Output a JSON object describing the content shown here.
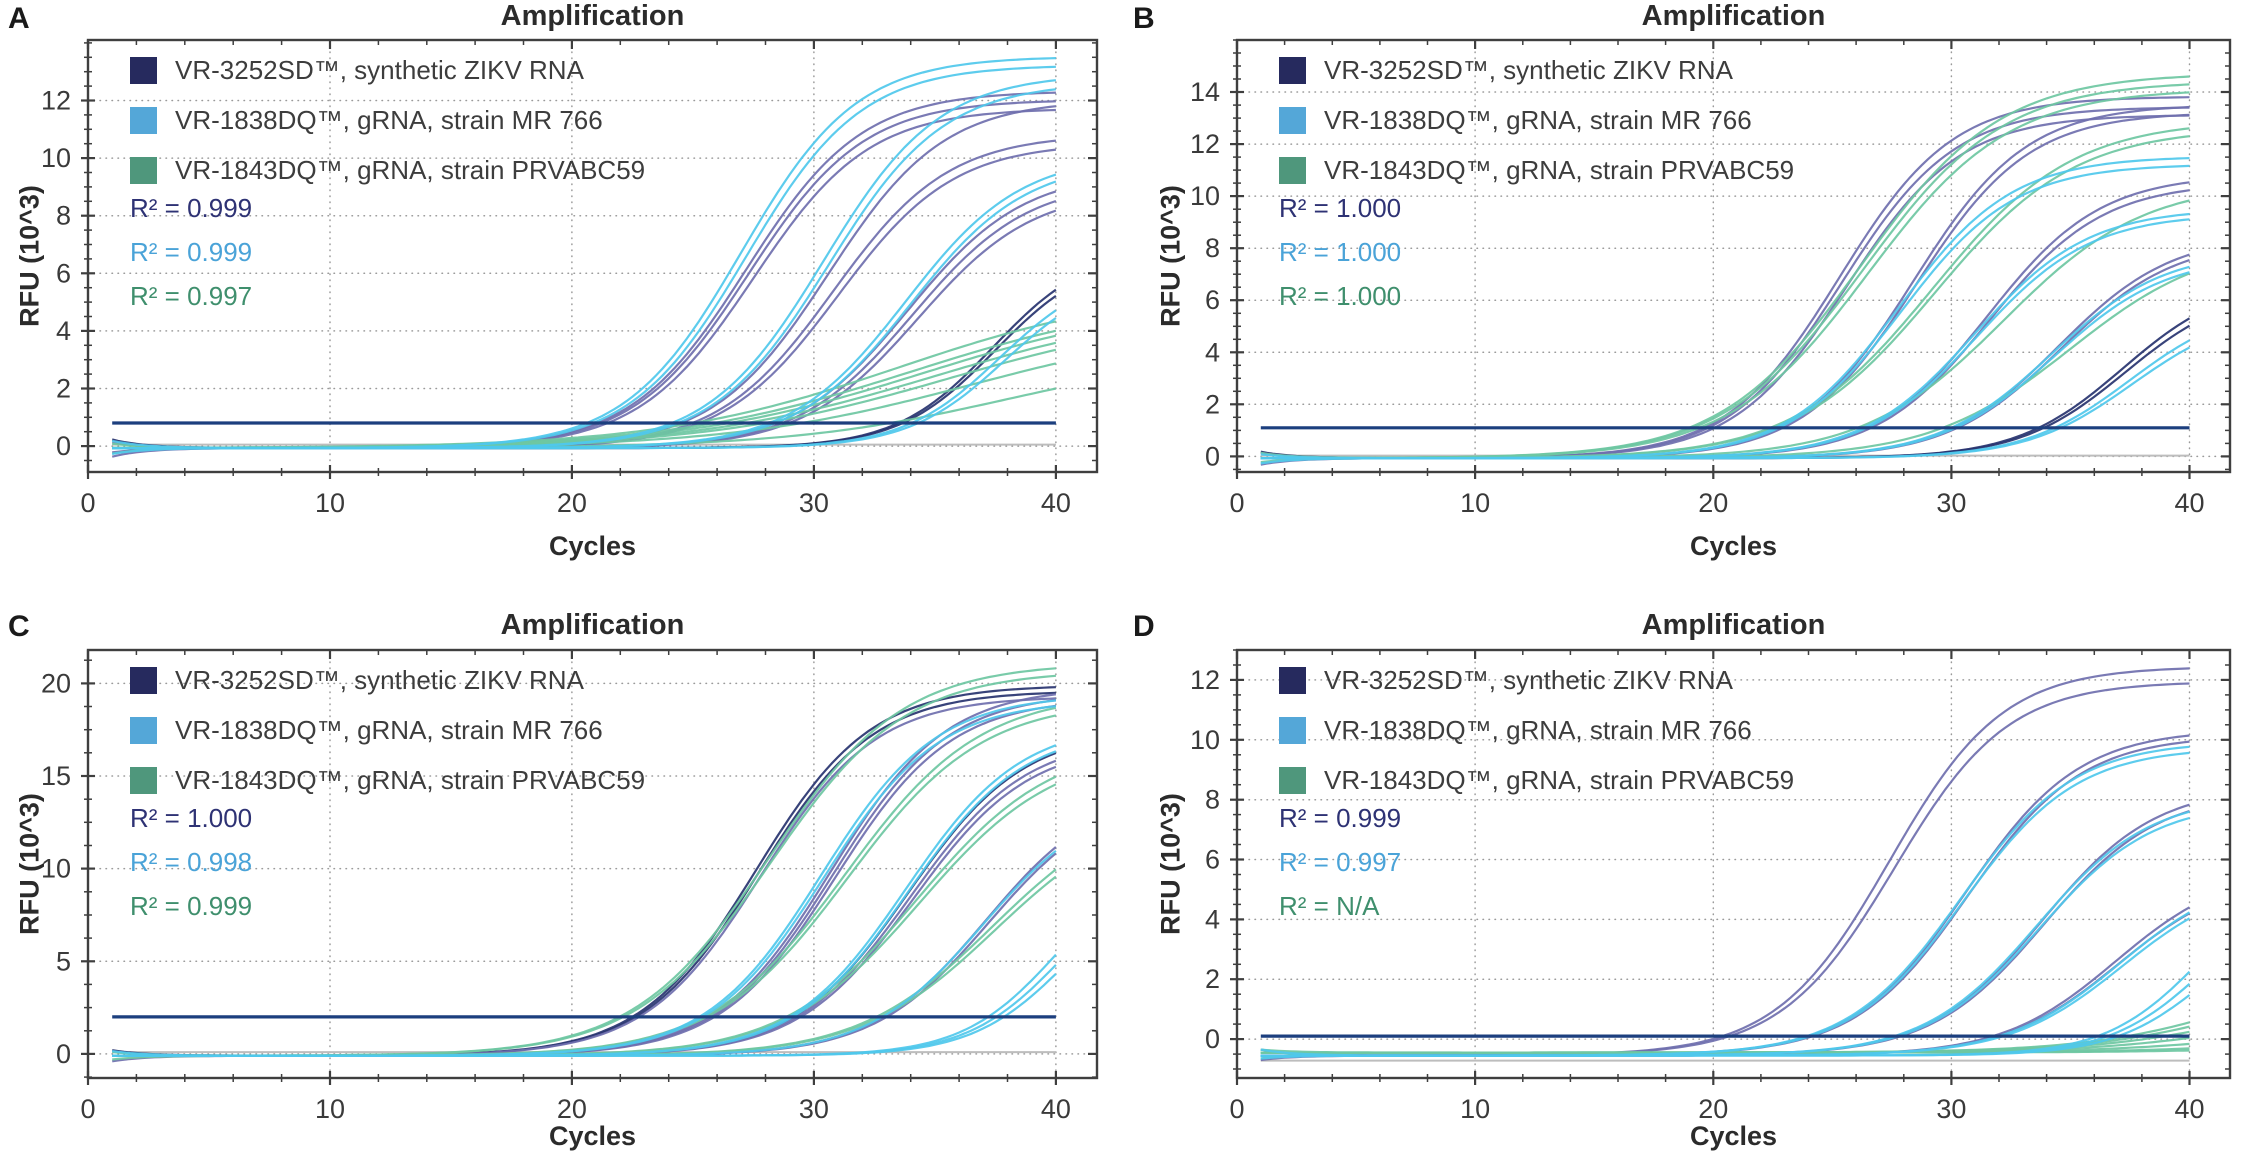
{
  "colors": {
    "swatch_navy": "#262a5e",
    "swatch_blue": "#54a7d8",
    "swatch_green": "#4f977c",
    "curve_navy": "#27336f",
    "curve_purple": "#6f6fae",
    "curve_cyan": "#4fc8ec",
    "curve_green": "#6ec7a2",
    "threshold": "#1c3f7e",
    "ntc": "#bdbdbd",
    "axis": "#3f3f3f",
    "grid": "#9a9a9a",
    "tick_text": "#3a3a3a",
    "r2_navy": "#2e3274",
    "r2_blue": "#4aa3d8",
    "r2_green": "#3f8f6d"
  },
  "legend": [
    {
      "label": "VR-3252SD™, synthetic ZIKV RNA",
      "color": "swatch_navy"
    },
    {
      "label": "VR-1838DQ™, gRNA, strain MR 766",
      "color": "swatch_blue"
    },
    {
      "label": "VR-1843DQ™, gRNA, strain PRVABC59",
      "color": "swatch_green"
    }
  ],
  "chart_data": [
    {
      "id": "a",
      "panel_letter": "A",
      "type": "line",
      "title": "Amplification",
      "xlabel": "Cycles",
      "ylabel": "RFU (10^3)",
      "xlim": [
        0,
        41.7
      ],
      "ylim": [
        -0.9,
        14.1
      ],
      "x_ticks": [
        0,
        10,
        20,
        30,
        40
      ],
      "x_minor_step": 2,
      "y_ticks": [
        0,
        2,
        4,
        6,
        8,
        10,
        12
      ],
      "y_minor_step": 0.5,
      "grid": true,
      "threshold": 0.8,
      "ntc": 0.05,
      "baseline": -0.07,
      "r2": [
        {
          "text": "R² = 0.999",
          "color": "r2_navy"
        },
        {
          "text": "R² = 0.999",
          "color": "r2_blue"
        },
        {
          "text": "R² = 0.997",
          "color": "r2_green"
        }
      ],
      "series": [
        {
          "name": "VR-3252SD™, synthetic ZIKV RNA",
          "shade": "dark",
          "color": "curve_navy",
          "k": 0.5,
          "curves": [
            {
              "m": 37.4,
              "p": 7.0,
              "a": 0.3
            },
            {
              "m": 37.5,
              "p": 6.8
            }
          ]
        },
        {
          "name": "VR-3252SD™, synthetic ZIKV RNA",
          "shade": "light",
          "color": "curve_purple",
          "k": 0.42,
          "curves": [
            {
              "m": 27.2,
              "p": 12.4,
              "a": -0.3
            },
            {
              "m": 27.3,
              "p": 12.1
            },
            {
              "m": 27.5,
              "p": 11.8
            },
            {
              "m": 30.6,
              "p": 12.1,
              "a": 0.2
            },
            {
              "m": 30.8,
              "p": 10.9
            },
            {
              "m": 31.0,
              "p": 10.6
            },
            {
              "m": 33.9,
              "p": 9.6,
              "a": -0.15
            },
            {
              "m": 34.1,
              "p": 9.3
            },
            {
              "m": 34.3,
              "p": 9.0
            }
          ]
        },
        {
          "name": "VR-1843DQ™, gRNA, strain PRVABC59",
          "color": "curve_green",
          "k": 0.2,
          "curves": [
            {
              "m": 33.5,
              "p": 5.6,
              "a": -0.2
            },
            {
              "m": 34.0,
              "p": 5.3
            },
            {
              "m": 34.5,
              "p": 5.2
            },
            {
              "m": 35.0,
              "p": 5.0,
              "a": 0.15
            },
            {
              "m": 35.5,
              "p": 4.8
            },
            {
              "m": 36.5,
              "p": 4.4
            },
            {
              "m": 38.0,
              "p": 3.4,
              "k": 0.22
            }
          ]
        },
        {
          "name": "VR-1838DQ™, gRNA, strain MR 766",
          "color": "curve_cyan",
          "k": 0.42,
          "curves": [
            {
              "m": 27.0,
              "p": 13.6,
              "a": 0.25
            },
            {
              "m": 27.2,
              "p": 13.3
            },
            {
              "m": 30.4,
              "p": 13.0
            },
            {
              "m": 30.6,
              "p": 12.7,
              "a": -0.2
            },
            {
              "m": 33.8,
              "p": 10.2
            },
            {
              "m": 34.0,
              "p": 10.0
            },
            {
              "m": 37.7,
              "p": 6.3,
              "k": 0.5
            },
            {
              "m": 37.9,
              "p": 6.1,
              "k": 0.5
            }
          ]
        }
      ]
    },
    {
      "id": "b",
      "panel_letter": "B",
      "type": "line",
      "title": "Amplification",
      "xlabel": "Cycles",
      "ylabel": "RFU (10^3)",
      "xlim": [
        0,
        41.7
      ],
      "ylim": [
        -0.6,
        16.0
      ],
      "x_ticks": [
        0,
        10,
        20,
        30,
        40
      ],
      "x_minor_step": 2,
      "y_ticks": [
        0,
        2,
        4,
        6,
        8,
        10,
        12,
        14
      ],
      "y_minor_step": 0.5,
      "grid": true,
      "threshold": 1.1,
      "ntc": 0.03,
      "baseline": -0.07,
      "r2": [
        {
          "text": "R² = 1.000",
          "color": "r2_navy"
        },
        {
          "text": "R² = 1.000",
          "color": "r2_blue"
        },
        {
          "text": "R² = 1.000",
          "color": "r2_green"
        }
      ],
      "series": [
        {
          "name": "VR-3252SD™, synthetic ZIKV RNA",
          "shade": "dark",
          "color": "curve_navy",
          "k": 0.45,
          "curves": [
            {
              "m": 37.2,
              "p": 6.9,
              "a": 0.25
            },
            {
              "m": 37.3,
              "p": 6.6
            }
          ]
        },
        {
          "name": "VR-3252SD™, synthetic ZIKV RNA",
          "shade": "light",
          "color": "curve_purple",
          "k": 0.42,
          "curves": [
            {
              "m": 25.3,
              "p": 13.9,
              "a": -0.25
            },
            {
              "m": 25.4,
              "p": 13.5
            },
            {
              "m": 25.6,
              "p": 13.2
            },
            {
              "m": 28.4,
              "p": 13.6
            },
            {
              "m": 28.5,
              "p": 13.3
            },
            {
              "m": 31.5,
              "p": 10.9,
              "a": 0.2
            },
            {
              "m": 31.6,
              "p": 10.6
            },
            {
              "m": 34.5,
              "p": 8.6
            },
            {
              "m": 34.6,
              "p": 8.4
            }
          ]
        },
        {
          "name": "VR-1843DQ™, gRNA, strain PRVABC59",
          "color": "curve_green",
          "k": 0.34,
          "curves": [
            {
              "m": 26.2,
              "p": 14.8,
              "a": 0.2
            },
            {
              "m": 26.3,
              "p": 14.5
            },
            {
              "m": 26.5,
              "p": 14.2
            },
            {
              "m": 29.2,
              "p": 13.0
            },
            {
              "m": 29.3,
              "p": 12.7
            },
            {
              "m": 32.2,
              "p": 10.6,
              "a": -0.15
            },
            {
              "m": 35.0,
              "p": 8.4
            }
          ]
        },
        {
          "name": "VR-1838DQ™, gRNA, strain MR 766",
          "color": "curve_cyan",
          "k": 0.42,
          "curves": [
            {
              "m": 27.8,
              "p": 11.6,
              "a": -0.2
            },
            {
              "m": 27.9,
              "p": 11.3
            },
            {
              "m": 31.0,
              "p": 9.6
            },
            {
              "m": 31.1,
              "p": 9.4
            },
            {
              "m": 34.2,
              "p": 8.0,
              "a": 0.15
            },
            {
              "m": 34.3,
              "p": 7.8
            },
            {
              "m": 37.5,
              "p": 6.0,
              "k": 0.45
            },
            {
              "m": 37.6,
              "p": 5.7,
              "k": 0.45
            }
          ]
        }
      ]
    },
    {
      "id": "c",
      "panel_letter": "C",
      "type": "line",
      "title": "Amplification",
      "xlabel": "Cycles",
      "ylabel": "RFU (10^3)",
      "xlim": [
        0,
        41.7
      ],
      "ylim": [
        -1.3,
        21.8
      ],
      "x_ticks": [
        0,
        10,
        20,
        30,
        40
      ],
      "x_minor_step": 2,
      "y_ticks": [
        0,
        5,
        10,
        15,
        20
      ],
      "y_minor_step": 1.25,
      "grid": true,
      "threshold": 2.0,
      "ntc": 0.1,
      "baseline": -0.1,
      "r2": [
        {
          "text": "R² = 1.000",
          "color": "r2_navy"
        },
        {
          "text": "R² = 0.998",
          "color": "r2_blue"
        },
        {
          "text": "R² = 0.999",
          "color": "r2_green"
        }
      ],
      "series": [
        {
          "name": "VR-3252SD™, synthetic ZIKV RNA",
          "shade": "dark",
          "color": "curve_navy",
          "k": 0.42,
          "curves": [
            {
              "m": 27.6,
              "p": 20.0,
              "a": 0.3
            },
            {
              "m": 27.7,
              "p": 19.7
            },
            {
              "m": 33.9,
              "p": 17.6
            }
          ]
        },
        {
          "name": "VR-3252SD™, synthetic ZIKV RNA",
          "shade": "light",
          "color": "curve_purple",
          "k": 0.42,
          "curves": [
            {
              "m": 27.8,
              "p": 19.4,
              "a": -0.3
            },
            {
              "m": 30.7,
              "p": 19.9
            },
            {
              "m": 30.8,
              "p": 19.6
            },
            {
              "m": 30.9,
              "p": 19.3
            },
            {
              "m": 34.0,
              "p": 17.2
            },
            {
              "m": 34.1,
              "p": 16.9
            },
            {
              "m": 37.1,
              "p": 14.6
            },
            {
              "m": 37.2,
              "p": 14.3
            }
          ]
        },
        {
          "name": "VR-1843DQ™, gRNA, strain PRVABC59",
          "color": "curve_green",
          "k": 0.36,
          "curves": [
            {
              "m": 28.1,
              "p": 21.2,
              "a": 0.2
            },
            {
              "m": 28.2,
              "p": 20.8
            },
            {
              "m": 31.3,
              "p": 19.6
            },
            {
              "m": 31.4,
              "p": 19.2
            },
            {
              "m": 34.3,
              "p": 17.0,
              "a": -0.2
            },
            {
              "m": 34.4,
              "p": 16.6
            },
            {
              "m": 37.4,
              "p": 14.0
            },
            {
              "m": 37.5,
              "p": 13.6
            }
          ]
        },
        {
          "name": "VR-1838DQ™, gRNA, strain MR 766",
          "color": "curve_cyan",
          "k": 0.42,
          "curves": [
            {
              "m": 30.3,
              "p": 19.5,
              "a": 0.25
            },
            {
              "m": 30.4,
              "p": 19.2
            },
            {
              "m": 33.8,
              "p": 18.0
            },
            {
              "m": 33.9,
              "p": 17.7
            },
            {
              "m": 37.0,
              "p": 14.2
            },
            {
              "m": 40.2,
              "p": 11.5,
              "k": 0.5
            },
            {
              "m": 40.4,
              "p": 10.9,
              "k": 0.5
            },
            {
              "m": 40.6,
              "p": 10.4,
              "k": 0.5
            }
          ]
        }
      ]
    },
    {
      "id": "d",
      "panel_letter": "D",
      "type": "line",
      "title": "Amplification",
      "xlabel": "Cycles",
      "ylabel": "RFU (10^3)",
      "xlim": [
        0,
        41.7
      ],
      "ylim": [
        -1.3,
        13.0
      ],
      "x_ticks": [
        0,
        10,
        20,
        30,
        40
      ],
      "x_minor_step": 2,
      "y_ticks": [
        0,
        2,
        4,
        6,
        8,
        10,
        12
      ],
      "y_minor_step": 0.5,
      "grid": true,
      "threshold": 0.1,
      "ntc": -0.72,
      "baseline": -0.55,
      "r2": [
        {
          "text": "R² = 0.999",
          "color": "r2_navy"
        },
        {
          "text": "R² = 0.997",
          "color": "r2_blue"
        },
        {
          "text": "R² = N/A",
          "color": "r2_green"
        }
      ],
      "series": [
        {
          "name": "VR-3252SD™, synthetic ZIKV RNA",
          "shade": "light",
          "color": "curve_purple",
          "k": 0.42,
          "curves": [
            {
              "m": 27.4,
              "p": 13.0,
              "a": 0.2
            },
            {
              "m": 27.6,
              "p": 12.5
            },
            {
              "m": 30.6,
              "p": 10.9
            },
            {
              "m": 30.7,
              "p": 10.7
            },
            {
              "m": 33.8,
              "p": 9.0,
              "a": -0.15
            },
            {
              "m": 33.9,
              "p": 8.8
            },
            {
              "m": 36.9,
              "p": 6.3
            },
            {
              "m": 37.0,
              "p": 6.1
            }
          ]
        },
        {
          "name": "VR-1843DQ™, gRNA, strain PRVABC59",
          "color": "curve_green",
          "k": 0.3,
          "b": -0.45,
          "curves": [
            {
              "m": 43,
              "p": 3.5,
              "a": -0.2
            },
            {
              "m": 43,
              "p": 3.0
            },
            {
              "m": 43,
              "p": 2.4
            },
            {
              "m": 43,
              "p": 1.7,
              "a": 0.1
            },
            {
              "m": 43,
              "p": 1.0
            },
            {
              "m": 44,
              "p": 0.6
            },
            {
              "m": 44,
              "p": 0.3
            }
          ]
        },
        {
          "name": "VR-1838DQ™, gRNA, strain MR 766",
          "color": "curve_cyan",
          "k": 0.42,
          "curves": [
            {
              "m": 30.4,
              "p": 10.5,
              "a": 0.2
            },
            {
              "m": 30.5,
              "p": 10.3
            },
            {
              "m": 33.6,
              "p": 8.7
            },
            {
              "m": 33.7,
              "p": 8.5
            },
            {
              "m": 37.1,
              "p": 6.2,
              "a": -0.1
            },
            {
              "m": 37.2,
              "p": 6.0
            },
            {
              "m": 40.5,
              "p": 6.4,
              "k": 0.5
            },
            {
              "m": 40.7,
              "p": 5.8,
              "k": 0.5
            },
            {
              "m": 40.9,
              "p": 5.2,
              "k": 0.5
            }
          ]
        }
      ]
    }
  ]
}
